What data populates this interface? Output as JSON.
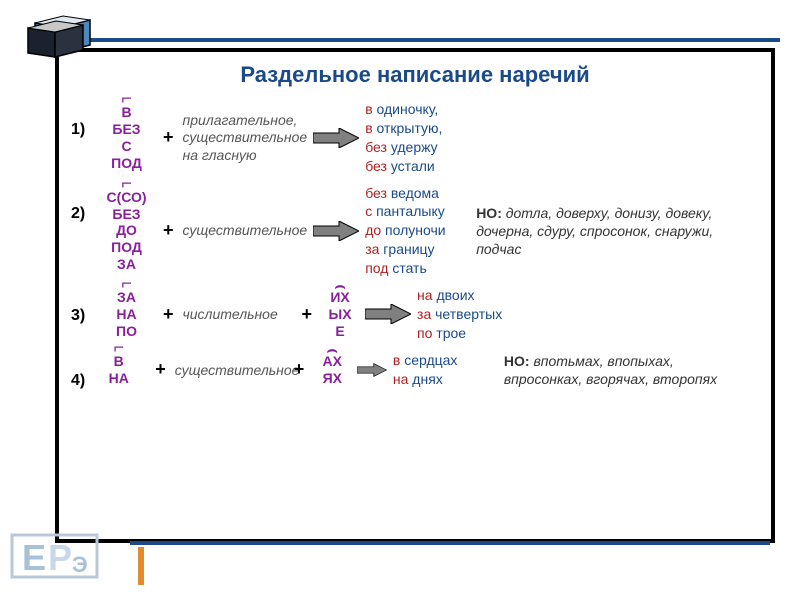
{
  "title": {
    "text": "Раздельное написание наречий",
    "fontsize": 22,
    "color": "#1a4a8a"
  },
  "colors": {
    "purple": "#8a1f9c",
    "red": "#b02020",
    "darkblue": "#1a4a8a",
    "black": "#000000",
    "italic_gray": "#555555",
    "arrow_fill": "#808080",
    "arrow_stroke": "#000000",
    "frame_border": "#000000",
    "orange_bar": "#e28b2f"
  },
  "fontsizes": {
    "body": 14,
    "num": 16,
    "plus": 18,
    "title": 22
  },
  "rows": [
    {
      "num": "1)",
      "prefixes": [
        "В",
        "БЕЗ",
        "С",
        "ПОД"
      ],
      "suffixes": null,
      "desc": "прилагательное,\nсуществительное\nна гласную",
      "examples": [
        {
          "pre": "в ",
          "suf": "одиночку,"
        },
        {
          "pre": "в ",
          "suf": "открытую,"
        },
        {
          "pre": "без ",
          "suf": "удержу"
        },
        {
          "pre": "без ",
          "suf": "устали"
        }
      ],
      "exception": null
    },
    {
      "num": "2)",
      "prefixes": [
        "С(СО)",
        "БЕЗ",
        "ДО",
        "ПОД",
        "ЗА"
      ],
      "suffixes": null,
      "desc": "существительное",
      "examples": [
        {
          "pre": "без ",
          "suf": " ведома"
        },
        {
          "pre": "с ",
          "suf": "панталыку"
        },
        {
          "pre": "до ",
          "suf": "полуночи"
        },
        {
          "pre": "за ",
          "suf": "границу"
        },
        {
          "pre": "под ",
          "suf": "стать"
        }
      ],
      "exception": "дотла, доверху, донизу, довеку, дочерна, сдуру, спросонок, снаружи, подчас"
    },
    {
      "num": "3)",
      "prefixes": [
        "ЗА",
        "НА",
        "ПО"
      ],
      "suffixes": [
        "ИХ",
        "ЫХ",
        "Е"
      ],
      "desc": "числительное",
      "examples": [
        {
          "pre": "на ",
          "suf": "двоих"
        },
        {
          "pre": "за ",
          "suf": "четвертых"
        },
        {
          "pre": "по ",
          "suf": "трое"
        }
      ],
      "exception": null
    },
    {
      "num": "4)",
      "prefixes": [
        "В",
        "НА"
      ],
      "suffixes": [
        "АХ",
        "ЯХ"
      ],
      "desc": "существительное",
      "examples": [
        {
          "pre": "в ",
          "suf": "сердцах"
        },
        {
          "pre": "на ",
          "suf": "днях"
        }
      ],
      "exception": "впотьмах, впопыхах, впросонках, вгорячах, второпях"
    }
  ],
  "exception_label": "НО:"
}
